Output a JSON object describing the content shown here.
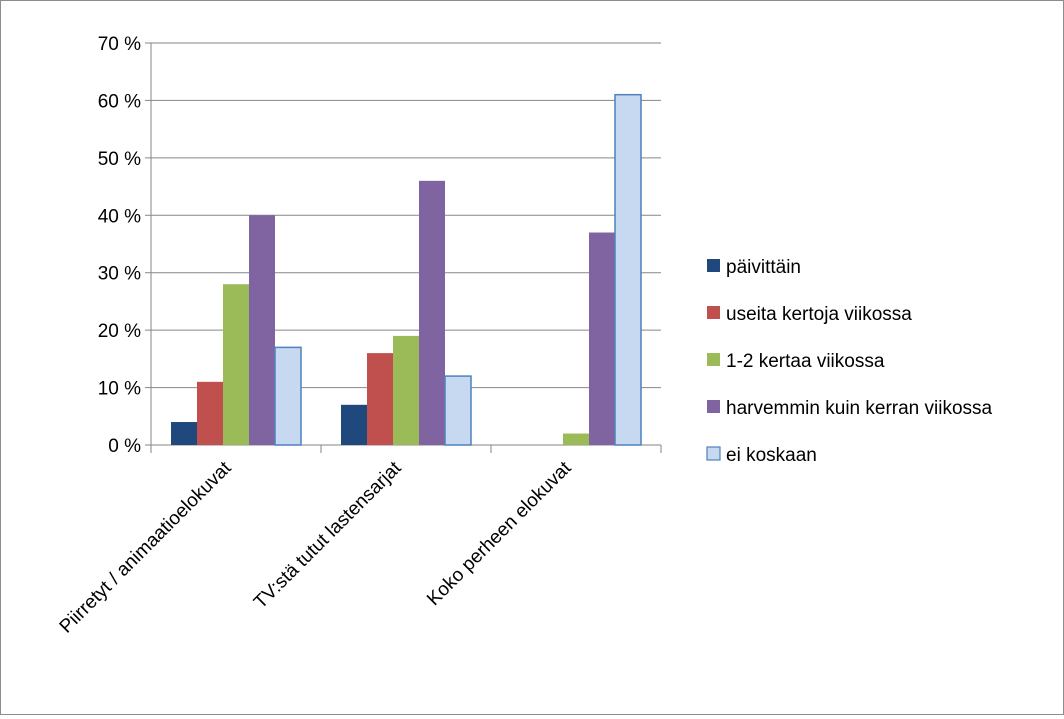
{
  "chart_data": {
    "type": "bar",
    "title": "",
    "xlabel": "",
    "ylabel": "",
    "categories": [
      "Piirretyt / animaatioelokuvat",
      "TV:stä tutut lastensarjat",
      "Koko perheen elokuvat"
    ],
    "series": [
      {
        "name": "päivittäin",
        "values": [
          4,
          7,
          0
        ],
        "color": "#1f497d"
      },
      {
        "name": "useita kertoja viikossa",
        "values": [
          11,
          16,
          0
        ],
        "color": "#c0504d"
      },
      {
        "name": "1-2 kertaa viikossa",
        "values": [
          28,
          19,
          2
        ],
        "color": "#9bbb59"
      },
      {
        "name": "harvemmin kuin kerran viikossa",
        "values": [
          40,
          46,
          37
        ],
        "color": "#8064a2"
      },
      {
        "name": "ei koskaan",
        "values": [
          17,
          12,
          61
        ],
        "color": "#c6d9f1",
        "stroke": "#4f81bd"
      }
    ],
    "ylim": [
      0,
      70
    ],
    "yticks": [
      0,
      10,
      20,
      30,
      40,
      50,
      60,
      70
    ],
    "ytick_labels": [
      "0 %",
      "10 %",
      "20 %",
      "30 %",
      "40 %",
      "50 %",
      "60 %",
      "70 %"
    ],
    "grid": "horizontal",
    "legend_position": "right"
  }
}
